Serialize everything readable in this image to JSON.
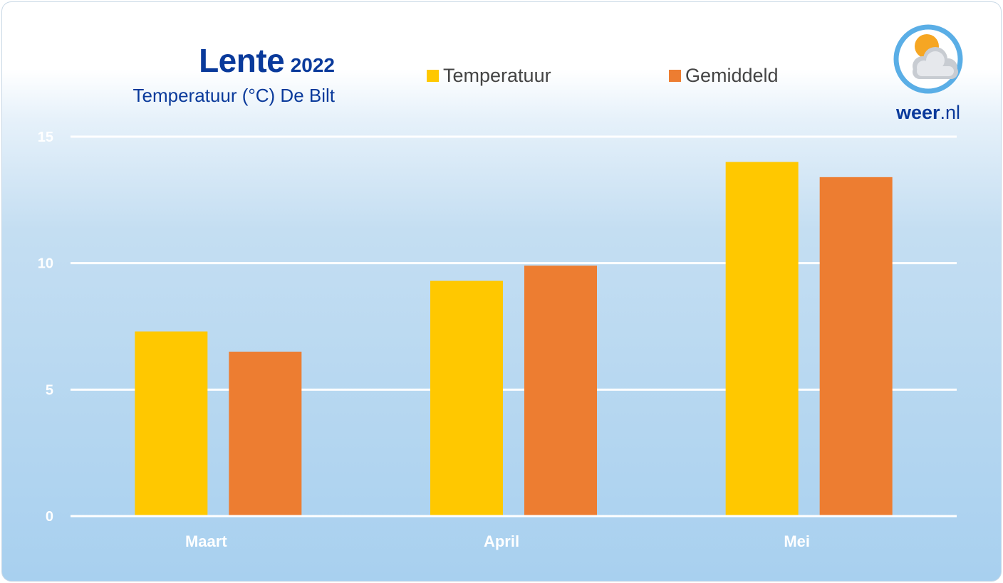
{
  "header": {
    "title": "Lente",
    "year": "2022",
    "subtitle": "Temperatuur (°C) De Bilt"
  },
  "legend": [
    {
      "label": "Temperatuur",
      "color": "#FFC800"
    },
    {
      "label": "Gemiddeld",
      "color": "#ED7D31"
    }
  ],
  "brand": {
    "name_bold": "weer",
    "name_suffix": ".nl",
    "icon": "sun-cloud-icon",
    "ring_color": "#5AAEE6"
  },
  "chart_data": {
    "type": "bar",
    "categories": [
      "Maart",
      "April",
      "Mei"
    ],
    "series": [
      {
        "name": "Temperatuur",
        "color": "#FFC800",
        "values": [
          7.3,
          9.3,
          14.0
        ]
      },
      {
        "name": "Gemiddeld",
        "color": "#ED7D31",
        "values": [
          6.5,
          9.9,
          13.4
        ]
      }
    ],
    "ylim": [
      0,
      15
    ],
    "yticks": [
      0,
      5,
      10,
      15
    ],
    "grid": true,
    "legend_position": "top"
  }
}
